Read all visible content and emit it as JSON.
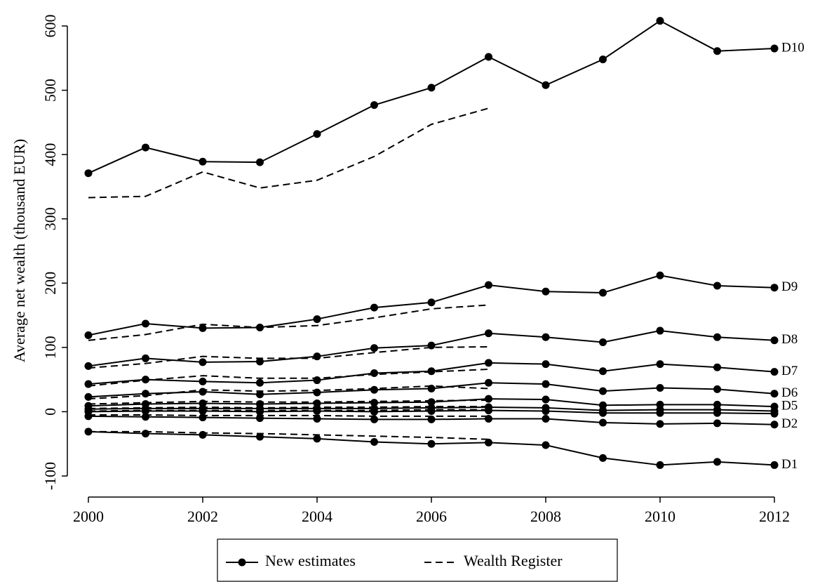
{
  "chart_data": {
    "type": "line",
    "y_label": "Average net wealth (thousand EUR)",
    "x": [
      2000,
      2001,
      2002,
      2003,
      2004,
      2005,
      2006,
      2007,
      2008,
      2009,
      2010,
      2011,
      2012
    ],
    "xlim": [
      2000,
      2012
    ],
    "xticks": [
      2000,
      2002,
      2004,
      2006,
      2008,
      2010,
      2012
    ],
    "ylim": [
      -100,
      600
    ],
    "yticks": [
      -100,
      0,
      100,
      200,
      300,
      400,
      500,
      600
    ],
    "series": [
      {
        "name": "New estimates",
        "color": "#000000",
        "dashed": false,
        "markers": true,
        "lines": [
          {
            "label": "D10",
            "values": [
              371,
              411,
              389,
              388,
              432,
              477,
              504,
              552,
              508,
              548,
              608,
              561,
              565
            ]
          },
          {
            "label": "D9",
            "values": [
              119,
              137,
              130,
              131,
              144,
              162,
              170,
              197,
              187,
              185,
              212,
              196,
              193
            ]
          },
          {
            "label": "D8",
            "values": [
              71,
              83,
              77,
              78,
              86,
              99,
              103,
              122,
              116,
              108,
              126,
              116,
              111
            ]
          },
          {
            "label": "D7",
            "values": [
              43,
              50,
              47,
              45,
              49,
              60,
              63,
              76,
              74,
              63,
              74,
              69,
              62
            ]
          },
          {
            "label": "D6",
            "values": [
              23,
              28,
              31,
              27,
              30,
              34,
              36,
              45,
              43,
              32,
              37,
              35,
              28
            ]
          },
          {
            "label": "D5",
            "values": [
              9,
              12,
              13,
              12,
              13,
              14,
              15,
              20,
              19,
              10,
              11,
              11,
              8
            ]
          },
          {
            "values": [
              4,
              5,
              5,
              5,
              5,
              5,
              6,
              7,
              6,
              2,
              3,
              3,
              1
            ]
          },
          {
            "values": [
              0,
              1,
              1,
              0,
              1,
              0,
              1,
              2,
              1,
              -2,
              -2,
              -2,
              -3
            ]
          },
          {
            "label": "D2",
            "values": [
              -7,
              -8,
              -9,
              -10,
              -11,
              -12,
              -12,
              -11,
              -11,
              -17,
              -19,
              -18,
              -20
            ]
          },
          {
            "label": "D1",
            "values": [
              -31,
              -34,
              -36,
              -39,
              -42,
              -47,
              -50,
              -48,
              -52,
              -72,
              -83,
              -78,
              -83
            ]
          }
        ]
      },
      {
        "name": "Wealth Register",
        "color": "#000000",
        "dashed": true,
        "markers": false,
        "lines": [
          {
            "values": [
              333,
              335,
              373,
              348,
              360,
              397,
              447,
              472,
              null,
              null,
              null,
              null,
              null
            ]
          },
          {
            "values": [
              111,
              120,
              136,
              131,
              134,
              146,
              160,
              166,
              null,
              null,
              null,
              null,
              null
            ]
          },
          {
            "values": [
              68,
              75,
              86,
              83,
              83,
              92,
              100,
              101,
              null,
              null,
              null,
              null,
              null
            ]
          },
          {
            "values": [
              40,
              49,
              56,
              52,
              52,
              58,
              62,
              66,
              null,
              null,
              null,
              null,
              null
            ]
          },
          {
            "values": [
              20,
              25,
              34,
              32,
              33,
              36,
              40,
              36,
              null,
              null,
              null,
              null,
              null
            ]
          },
          {
            "values": [
              12,
              14,
              16,
              15,
              15,
              16,
              17,
              18,
              null,
              null,
              null,
              null,
              null
            ]
          },
          {
            "values": [
              5,
              6,
              7,
              6,
              7,
              7,
              8,
              8,
              null,
              null,
              null,
              null,
              null
            ]
          },
          {
            "values": [
              1,
              2,
              2,
              2,
              2,
              2,
              3,
              3,
              null,
              null,
              null,
              null,
              null
            ]
          },
          {
            "values": [
              -5,
              -5,
              -6,
              -6,
              -6,
              -7,
              -7,
              -7,
              null,
              null,
              null,
              null,
              null
            ]
          },
          {
            "values": [
              -31,
              -31,
              -33,
              -34,
              -36,
              -38,
              -40,
              -43,
              null,
              null,
              null,
              null,
              null
            ]
          }
        ]
      }
    ]
  }
}
